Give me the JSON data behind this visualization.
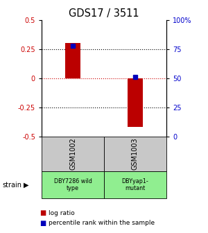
{
  "title": "GDS17 / 3511",
  "samples": [
    "GSM1002",
    "GSM1003"
  ],
  "strains": [
    "DBY7286 wild\ntype",
    "DBYyap1-\nmutant"
  ],
  "log_ratios": [
    0.3,
    -0.42
  ],
  "percentile_ranks": [
    78,
    51
  ],
  "bar_color": "#bb0000",
  "dot_color": "#0000bb",
  "left_axis_color": "#cc0000",
  "right_axis_color": "#0000cc",
  "ylim_left": [
    -0.5,
    0.5
  ],
  "ylim_right": [
    0,
    100
  ],
  "yticks_left": [
    -0.5,
    -0.25,
    0,
    0.25,
    0.5
  ],
  "yticks_right": [
    0,
    25,
    50,
    75,
    100
  ],
  "ytick_labels_left": [
    "-0.5",
    "-0.25",
    "0",
    "0.25",
    "0.5"
  ],
  "ytick_labels_right": [
    "0",
    "25",
    "50",
    "75",
    "100%"
  ],
  "hline_dotted_black": [
    -0.25,
    0.25
  ],
  "hline_dotted_red": 0,
  "strain_bg_color": "#90ee90",
  "sample_bg_color": "#c8c8c8",
  "legend_log_ratio": "log ratio",
  "legend_percentile": "percentile rank within the sample",
  "bar_width": 0.12
}
